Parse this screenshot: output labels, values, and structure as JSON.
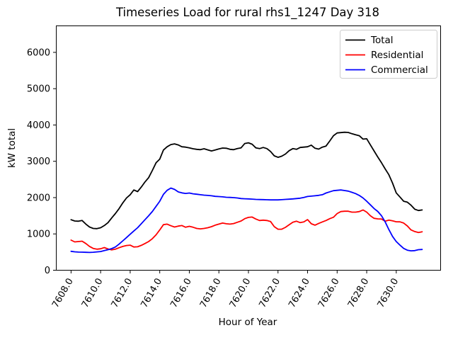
{
  "chart_data": {
    "type": "line",
    "title": "Timeseries Load for rural rhs1_1247  Day 318",
    "xlabel": "Hour of Year",
    "ylabel": "kW total",
    "xlim": [
      7607.0,
      7633.0
    ],
    "ylim": [
      0,
      6730
    ],
    "grid": false,
    "legend_position": "upper right",
    "x_ticks": [
      {
        "value": 7608,
        "label": "7608.0"
      },
      {
        "value": 7610,
        "label": "7610.0"
      },
      {
        "value": 7612,
        "label": "7612.0"
      },
      {
        "value": 7614,
        "label": "7614.0"
      },
      {
        "value": 7616,
        "label": "7616.0"
      },
      {
        "value": 7618,
        "label": "7618.0"
      },
      {
        "value": 7620,
        "label": "7620.0"
      },
      {
        "value": 7622,
        "label": "7622.0"
      },
      {
        "value": 7624,
        "label": "7624.0"
      },
      {
        "value": 7626,
        "label": "7626.0"
      },
      {
        "value": 7628,
        "label": "7628.0"
      },
      {
        "value": 7630,
        "label": "7630.0"
      }
    ],
    "y_ticks": [
      {
        "value": 0,
        "label": "0"
      },
      {
        "value": 1000,
        "label": "1000"
      },
      {
        "value": 2000,
        "label": "2000"
      },
      {
        "value": 3000,
        "label": "3000"
      },
      {
        "value": 4000,
        "label": "4000"
      },
      {
        "value": 5000,
        "label": "5000"
      },
      {
        "value": 6000,
        "label": "6000"
      }
    ],
    "x": [
      7608.0,
      7608.25,
      7608.5,
      7608.75,
      7609.0,
      7609.25,
      7609.5,
      7609.75,
      7610.0,
      7610.25,
      7610.5,
      7610.75,
      7611.0,
      7611.25,
      7611.5,
      7611.75,
      7612.0,
      7612.25,
      7612.5,
      7612.75,
      7613.0,
      7613.25,
      7613.5,
      7613.75,
      7614.0,
      7614.25,
      7614.5,
      7614.75,
      7615.0,
      7615.25,
      7615.5,
      7615.75,
      7616.0,
      7616.25,
      7616.5,
      7616.75,
      7617.0,
      7617.25,
      7617.5,
      7617.75,
      7618.0,
      7618.25,
      7618.5,
      7618.75,
      7619.0,
      7619.25,
      7619.5,
      7619.75,
      7620.0,
      7620.25,
      7620.5,
      7620.75,
      7621.0,
      7621.25,
      7621.5,
      7621.75,
      7622.0,
      7622.25,
      7622.5,
      7622.75,
      7623.0,
      7623.25,
      7623.5,
      7623.75,
      7624.0,
      7624.25,
      7624.5,
      7624.75,
      7625.0,
      7625.25,
      7625.5,
      7625.75,
      7626.0,
      7626.25,
      7626.5,
      7626.75,
      7627.0,
      7627.25,
      7627.5,
      7627.75,
      7628.0,
      7628.25,
      7628.5,
      7628.75,
      7629.0,
      7629.25,
      7629.5,
      7629.75,
      7630.0,
      7630.25,
      7630.5,
      7630.75,
      7631.0,
      7631.25,
      7631.5,
      7631.75
    ],
    "series": [
      {
        "name": "Total",
        "color": "#000000",
        "values": [
          1390,
          1355,
          1350,
          1370,
          1270,
          1190,
          1150,
          1145,
          1170,
          1230,
          1310,
          1440,
          1560,
          1700,
          1855,
          1990,
          2080,
          2210,
          2165,
          2290,
          2430,
          2550,
          2750,
          2960,
          3060,
          3310,
          3400,
          3460,
          3480,
          3450,
          3400,
          3390,
          3370,
          3345,
          3330,
          3320,
          3345,
          3315,
          3285,
          3310,
          3340,
          3365,
          3360,
          3330,
          3320,
          3350,
          3370,
          3490,
          3510,
          3470,
          3370,
          3350,
          3380,
          3350,
          3270,
          3150,
          3110,
          3140,
          3200,
          3290,
          3350,
          3330,
          3380,
          3390,
          3400,
          3445,
          3360,
          3335,
          3390,
          3420,
          3560,
          3705,
          3780,
          3790,
          3800,
          3795,
          3760,
          3730,
          3705,
          3610,
          3620,
          3450,
          3285,
          3120,
          2960,
          2790,
          2630,
          2400,
          2130,
          2016,
          1900,
          1875,
          1790,
          1680,
          1645,
          1660
        ]
      },
      {
        "name": "Residential",
        "color": "#ff0000",
        "values": [
          830,
          780,
          790,
          800,
          735,
          655,
          600,
          580,
          592,
          625,
          585,
          560,
          580,
          620,
          655,
          680,
          690,
          640,
          645,
          685,
          735,
          790,
          870,
          975,
          1110,
          1255,
          1270,
          1225,
          1190,
          1215,
          1230,
          1185,
          1210,
          1185,
          1150,
          1140,
          1150,
          1170,
          1200,
          1240,
          1270,
          1300,
          1280,
          1270,
          1285,
          1320,
          1355,
          1420,
          1455,
          1465,
          1410,
          1370,
          1380,
          1370,
          1340,
          1200,
          1130,
          1130,
          1180,
          1250,
          1320,
          1350,
          1310,
          1330,
          1395,
          1280,
          1240,
          1290,
          1330,
          1370,
          1420,
          1460,
          1560,
          1615,
          1625,
          1625,
          1600,
          1600,
          1615,
          1660,
          1600,
          1500,
          1430,
          1415,
          1410,
          1350,
          1380,
          1360,
          1335,
          1333,
          1300,
          1220,
          1110,
          1065,
          1040,
          1060
        ]
      },
      {
        "name": "Commercial",
        "color": "#0000ff",
        "values": [
          520,
          508,
          500,
          497,
          493,
          490,
          495,
          505,
          515,
          540,
          565,
          595,
          640,
          720,
          810,
          900,
          990,
          1080,
          1170,
          1280,
          1390,
          1500,
          1620,
          1760,
          1900,
          2090,
          2200,
          2262,
          2225,
          2158,
          2130,
          2115,
          2126,
          2105,
          2093,
          2080,
          2067,
          2060,
          2050,
          2035,
          2028,
          2020,
          2010,
          2005,
          2000,
          1990,
          1975,
          1968,
          1964,
          1958,
          1950,
          1946,
          1944,
          1940,
          1938,
          1938,
          1938,
          1942,
          1950,
          1957,
          1964,
          1975,
          1983,
          2005,
          2030,
          2040,
          2050,
          2061,
          2080,
          2126,
          2160,
          2190,
          2200,
          2211,
          2195,
          2178,
          2145,
          2110,
          2060,
          1990,
          1900,
          1800,
          1700,
          1620,
          1500,
          1330,
          1120,
          930,
          790,
          690,
          600,
          553,
          535,
          540,
          565,
          572
        ]
      }
    ],
    "legend": {
      "entries": [
        {
          "label": "Total"
        },
        {
          "label": "Residential"
        },
        {
          "label": "Commercial"
        }
      ]
    }
  }
}
